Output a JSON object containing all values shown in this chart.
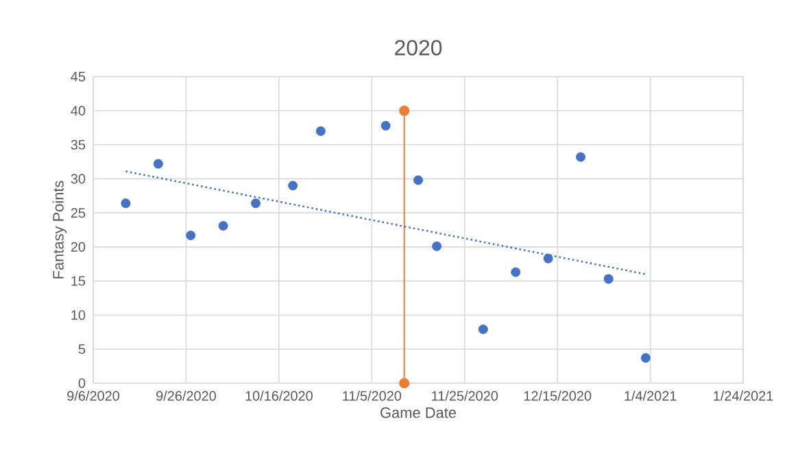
{
  "chart_data": {
    "type": "scatter",
    "title": "2020",
    "xlabel": "Game Date",
    "ylabel": "Fantasy Points",
    "grid": true,
    "xlim": [
      "2020-09-06",
      "2021-01-24"
    ],
    "xticks": [
      {
        "value": "2020-09-06",
        "label": "9/6/2020"
      },
      {
        "value": "2020-09-26",
        "label": "9/26/2020"
      },
      {
        "value": "2020-10-16",
        "label": "10/16/2020"
      },
      {
        "value": "2020-11-05",
        "label": "11/5/2020"
      },
      {
        "value": "2020-11-25",
        "label": "11/25/2020"
      },
      {
        "value": "2020-12-15",
        "label": "12/15/2020"
      },
      {
        "value": "2021-01-04",
        "label": "1/4/2021"
      },
      {
        "value": "2021-01-24",
        "label": "1/24/2021"
      }
    ],
    "ylim": [
      0,
      45
    ],
    "yticks": [
      0,
      5,
      10,
      15,
      20,
      25,
      30,
      35,
      40,
      45
    ],
    "series": [
      {
        "color": "#4472c4",
        "marker": "circle",
        "x": [
          "2020-09-13",
          "2020-09-20",
          "2020-09-27",
          "2020-10-04",
          "2020-10-11",
          "2020-10-19",
          "2020-10-25",
          "2020-11-08",
          "2020-11-15",
          "2020-11-19",
          "2020-11-29",
          "2020-12-06",
          "2020-12-13",
          "2020-12-20",
          "2020-12-26",
          "2021-01-03"
        ],
        "values": [
          26.4,
          32.2,
          21.7,
          23.1,
          26.4,
          29.0,
          37.0,
          37.8,
          29.8,
          20.1,
          7.9,
          16.3,
          18.3,
          33.2,
          15.3,
          3.7
        ]
      },
      {
        "type": "line",
        "color": "#ed7d31",
        "marker": "circle",
        "line_style": "solid",
        "x": [
          "2020-11-12",
          "2020-11-12"
        ],
        "values": [
          0,
          40
        ]
      },
      {
        "type": "line",
        "color": "#4472c4",
        "marker": "none",
        "line_style": "dotted",
        "x": [
          "2020-09-13",
          "2021-01-03"
        ],
        "values": [
          31.1,
          16.0
        ]
      }
    ]
  }
}
